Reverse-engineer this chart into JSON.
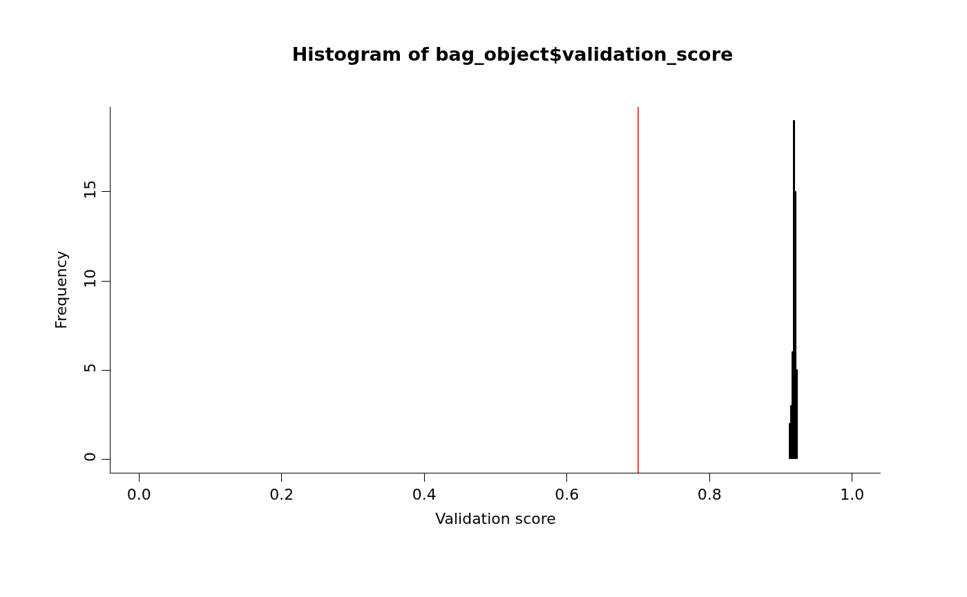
{
  "chart_data": {
    "type": "histogram",
    "title": "Histogram of bag_object$validation_score",
    "xlabel": "Validation score",
    "ylabel": "Frequency",
    "bins": [
      0.912,
      0.914,
      0.916,
      0.918,
      0.92,
      0.922,
      0.924
    ],
    "values": [
      2,
      3,
      6,
      19,
      15,
      5
    ],
    "color": "#000000",
    "xlim": [
      -0.04,
      1.04
    ],
    "xticks": [
      {
        "value": 0,
        "label": "0.0"
      },
      0.2,
      0.4,
      0.6,
      0.8,
      {
        "value": 1,
        "label": "1.0"
      }
    ],
    "ylim": [
      -0.76,
      19.76
    ],
    "yticks": [
      0,
      5,
      10,
      15
    ],
    "ref_lines": [
      {
        "axis": "x",
        "value": 0.7,
        "color": "#ff0000"
      }
    ]
  }
}
